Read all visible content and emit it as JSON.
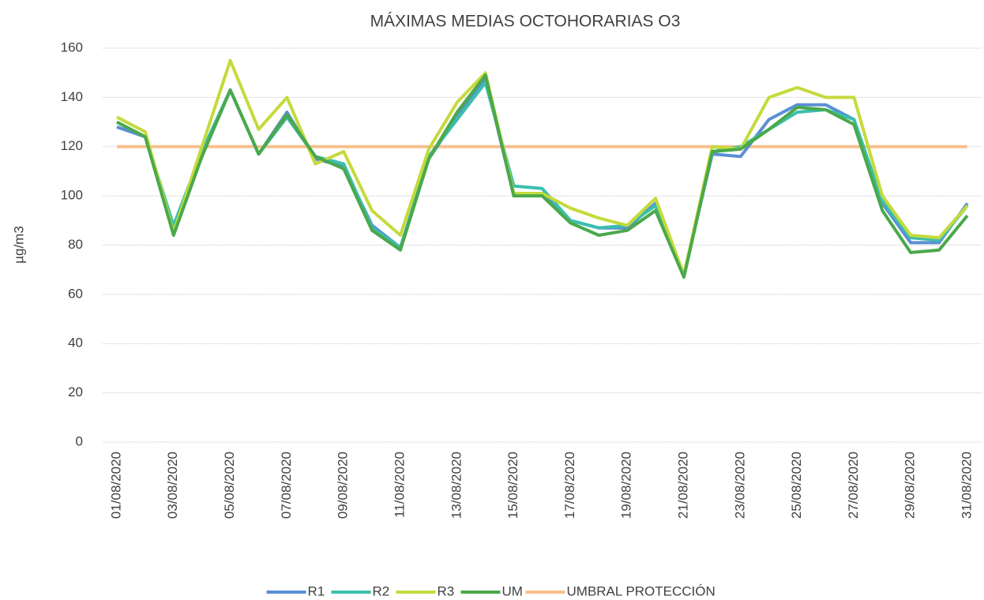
{
  "chart_data": {
    "type": "line",
    "title": "MÁXIMAS MEDIAS OCTOHORARIAS  O3",
    "y_label": "µg/m3",
    "categories": [
      "01/08/2020",
      null,
      "03/08/2020",
      null,
      "05/08/2020",
      null,
      "07/08/2020",
      null,
      "09/08/2020",
      null,
      "11/08/2020",
      null,
      "13/08/2020",
      null,
      "15/08/2020",
      null,
      "17/08/2020",
      null,
      "19/08/2020",
      null,
      "21/08/2020",
      null,
      "23/08/2020",
      null,
      "25/08/2020",
      null,
      "27/08/2020",
      null,
      "29/08/2020",
      null,
      "31/08/2020"
    ],
    "series": [
      {
        "name": "R1",
        "color": "#5b8fd4",
        "values": [
          128,
          124,
          86,
          116,
          143,
          117,
          134,
          115,
          112,
          88,
          79,
          115,
          132,
          148,
          100,
          101,
          90,
          87,
          87,
          97,
          68,
          117,
          116,
          131,
          137,
          137,
          131,
          97,
          81,
          81,
          97
        ]
      },
      {
        "name": "R2",
        "color": "#3bbfae",
        "values": [
          130,
          124,
          88,
          118,
          143,
          117,
          132,
          116,
          113,
          87,
          79,
          116,
          131,
          146,
          104,
          103,
          90,
          87,
          88,
          96,
          68,
          118,
          120,
          127,
          134,
          135,
          131,
          98,
          83,
          82,
          96
        ]
      },
      {
        "name": "R3",
        "color": "#c5da3c",
        "values": [
          132,
          126,
          85,
          120,
          155,
          127,
          140,
          113,
          118,
          94,
          84,
          119,
          138,
          150,
          101,
          101,
          95,
          91,
          88,
          99,
          68,
          120,
          119,
          140,
          144,
          140,
          140,
          100,
          84,
          83,
          96
        ]
      },
      {
        "name": "UM",
        "color": "#4aa94a",
        "values": [
          130,
          124,
          84,
          116,
          143,
          117,
          133,
          116,
          111,
          86,
          78,
          115,
          134,
          149,
          100,
          100,
          89,
          84,
          86,
          94,
          67,
          118,
          119,
          127,
          136,
          135,
          129,
          94,
          77,
          78,
          92
        ]
      },
      {
        "name": "UMBRAL PROTECCIÓN",
        "color": "#f7c08f",
        "values": [
          120,
          120,
          120,
          120,
          120,
          120,
          120,
          120,
          120,
          120,
          120,
          120,
          120,
          120,
          120,
          120,
          120,
          120,
          120,
          120,
          120,
          120,
          120,
          120,
          120,
          120,
          120,
          120,
          120,
          120,
          120
        ]
      }
    ],
    "ylim": [
      0,
      160
    ],
    "yticks": [
      0,
      20,
      40,
      60,
      80,
      100,
      120,
      140,
      160
    ],
    "grid": true,
    "legend": "bottom"
  }
}
